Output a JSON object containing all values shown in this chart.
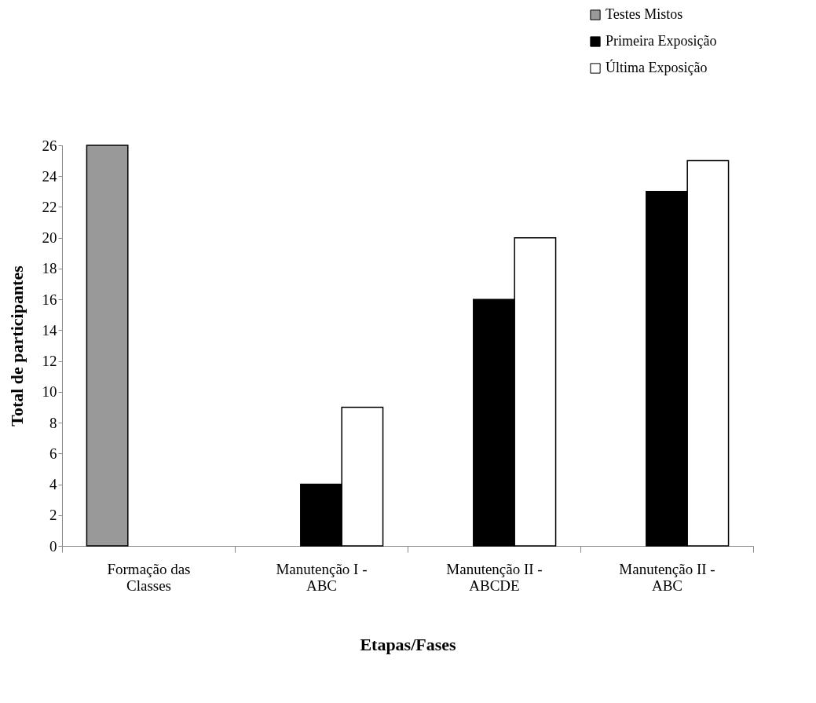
{
  "chart_data": {
    "type": "bar",
    "xlabel": "Etapas/Fases",
    "ylabel": "Total de participantes",
    "categories": [
      "Formação das Classes",
      "Manutenção I - ABC",
      "Manutenção II - ABCDE",
      "Manutenção II - ABC"
    ],
    "series": [
      {
        "name": "Testes Mistos",
        "color": "#999999",
        "values": [
          26,
          null,
          null,
          null
        ]
      },
      {
        "name": "Primeira Exposição",
        "color": "#000000",
        "values": [
          null,
          4,
          16,
          23
        ]
      },
      {
        "name": "Última Exposição",
        "color": "#ffffff",
        "values": [
          null,
          9,
          20,
          25
        ]
      }
    ],
    "ylim": [
      0,
      26
    ],
    "yticks": [
      0,
      2,
      4,
      6,
      8,
      10,
      12,
      14,
      16,
      18,
      20,
      22,
      24,
      26
    ],
    "grid": false,
    "legend": "top right"
  }
}
